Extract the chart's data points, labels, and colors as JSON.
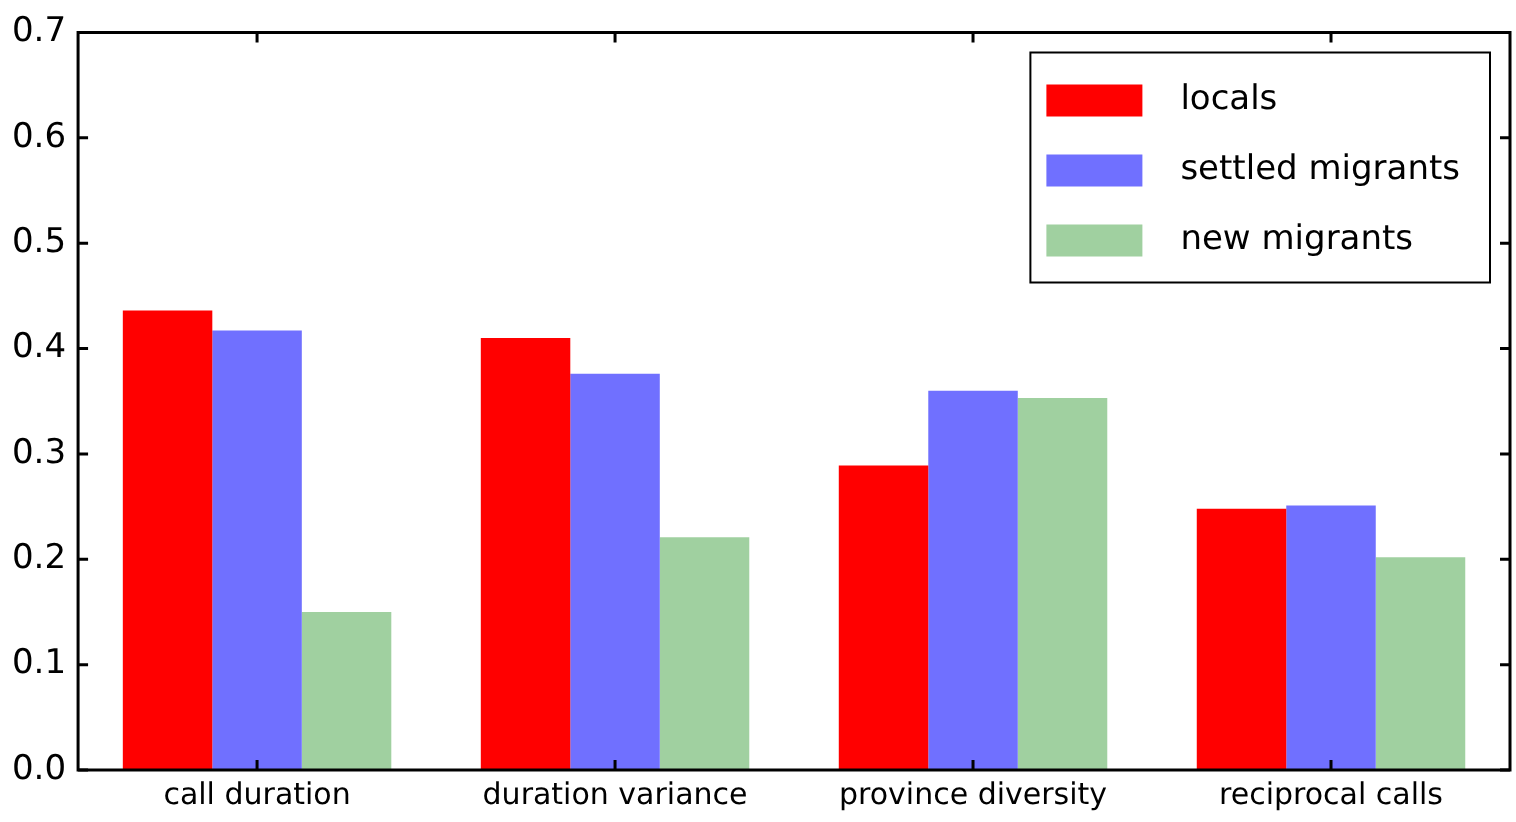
{
  "chart_data": {
    "type": "bar",
    "categories": [
      "call duration",
      "duration variance",
      "province diversity",
      "reciprocal calls"
    ],
    "series": [
      {
        "name": "locals",
        "color": "#ff0000",
        "values": [
          0.436,
          0.41,
          0.289,
          0.248
        ]
      },
      {
        "name": "settled migrants",
        "color": "#7070ff",
        "values": [
          0.417,
          0.376,
          0.36,
          0.251
        ]
      },
      {
        "name": "new migrants",
        "color": "#a0d0a0",
        "values": [
          0.15,
          0.221,
          0.353,
          0.202
        ]
      }
    ],
    "ylim": [
      0,
      0.7
    ],
    "yticks": [
      {
        "value": 0,
        "label": "0.0"
      },
      0.1,
      0.2,
      0.3,
      0.4,
      0.5,
      0.6,
      0.7
    ],
    "grid": false,
    "legend": "top right"
  }
}
